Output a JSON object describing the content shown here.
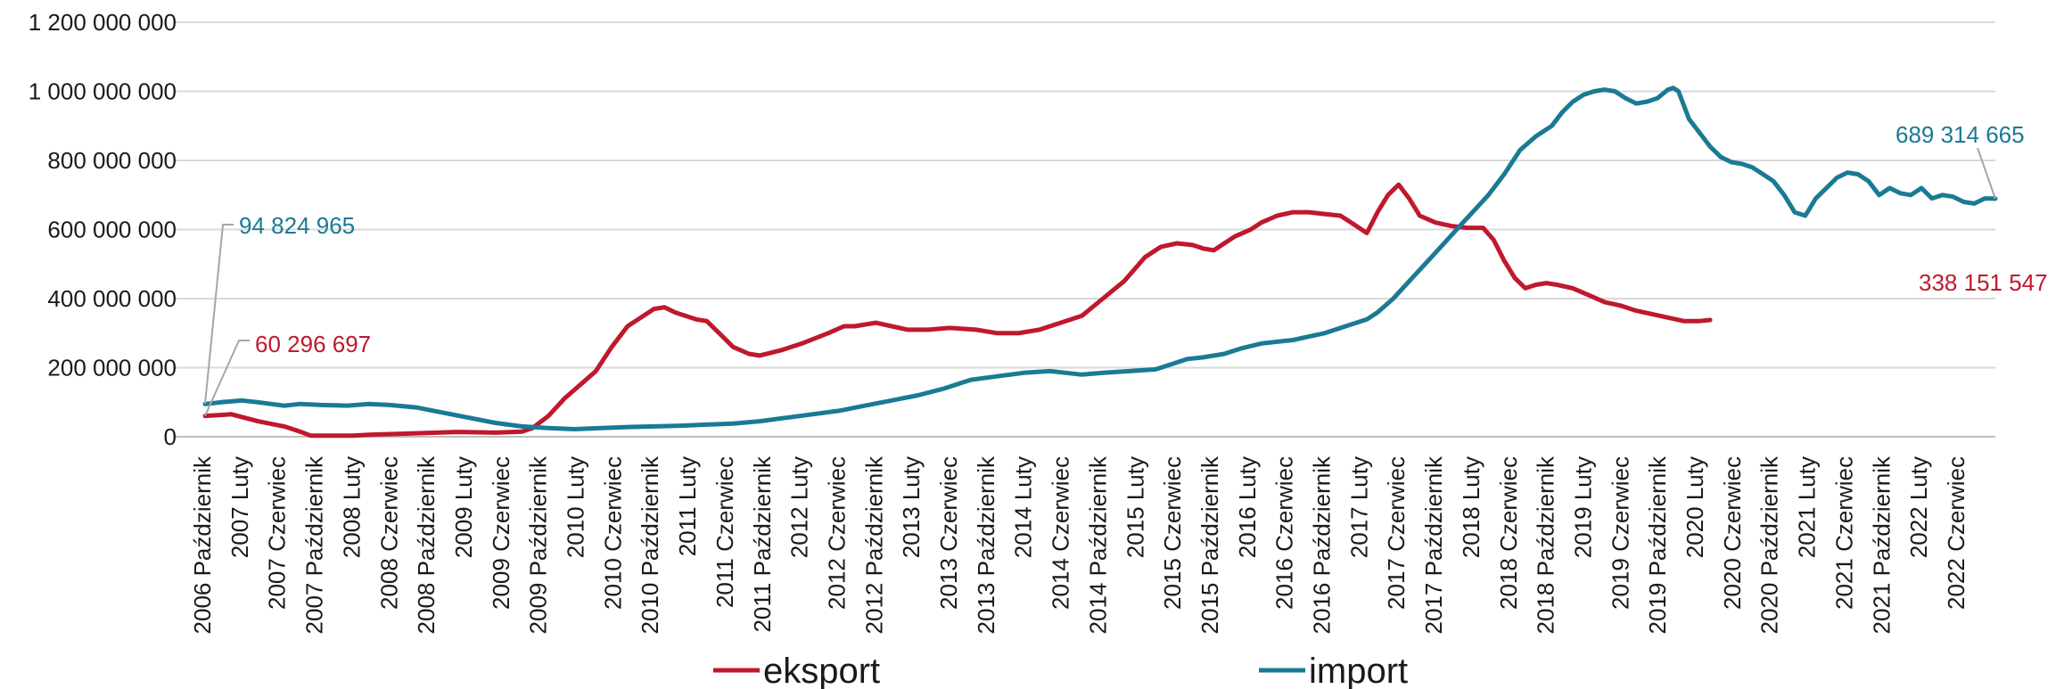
{
  "chart_data": {
    "type": "line",
    "title": "",
    "xlabel": "",
    "ylabel": "",
    "ylim": [
      0,
      1200000000
    ],
    "yticks": [
      {
        "value": 0,
        "label": "0"
      },
      {
        "value": 200000000,
        "label": "200 000 000"
      },
      {
        "value": 400000000,
        "label": "400 000 000"
      },
      {
        "value": 600000000,
        "label": "600 000 000"
      },
      {
        "value": 800000000,
        "label": "800 000 000"
      },
      {
        "value": 1000000000,
        "label": "1 000 000 000"
      },
      {
        "value": 1200000000,
        "label": "1 200 000 000"
      }
    ],
    "grid": true,
    "legend_position": "bottom",
    "x_start": {
      "year": 2006,
      "month": 10
    },
    "x_count": 194,
    "x_tick_labels": [
      "2006 Październik",
      "2007 Luty",
      "2007 Czerwiec",
      "2007 Październik",
      "2008 Luty",
      "2008 Czerwiec",
      "2008 Październik",
      "2009 Luty",
      "2009 Czerwiec",
      "2009 Październik",
      "2010 Luty",
      "2010 Czerwiec",
      "2010 Październik",
      "2011 Luty",
      "2011 Czerwiec",
      "2011 Październik",
      "2012 Luty",
      "2012 Czerwiec",
      "2012 Październik",
      "2013 Luty",
      "2013 Czerwiec",
      "2013 Październik",
      "2014 Luty",
      "2014 Czerwiec",
      "2014 Październik",
      "2015 Luty",
      "2015 Czerwiec",
      "2015 Październik",
      "2016 Luty",
      "2016 Czerwiec",
      "2016 Październik",
      "2017 Luty",
      "2017 Czerwiec",
      "2017 Październik",
      "2018 Luty",
      "2018 Czerwiec",
      "2018 Październik",
      "2019 Luty",
      "2019 Czerwiec",
      "2019 Październik",
      "2020 Luty",
      "2020 Czerwiec",
      "2020 Październik",
      "2021 Luty",
      "2021 Czerwiec",
      "2021 Październik",
      "2022 Luty",
      "2022 Czerwiec"
    ],
    "series": [
      {
        "name": "eksport",
        "color": "#c0182c",
        "anchors": [
          [
            0,
            60296697
          ],
          [
            5,
            65000000
          ],
          [
            10,
            45000000
          ],
          [
            15,
            30000000
          ],
          [
            18,
            15000000
          ],
          [
            20,
            3000000
          ],
          [
            28,
            3000000
          ],
          [
            31,
            6000000
          ],
          [
            38,
            9000000
          ],
          [
            48,
            14000000
          ],
          [
            55,
            12000000
          ],
          [
            60,
            15000000
          ],
          [
            62,
            25000000
          ],
          [
            65,
            60000000
          ],
          [
            68,
            110000000
          ],
          [
            71,
            150000000
          ],
          [
            74,
            190000000
          ],
          [
            77,
            260000000
          ],
          [
            80,
            320000000
          ],
          [
            82,
            340000000
          ],
          [
            85,
            370000000
          ],
          [
            87,
            375000000
          ],
          [
            89,
            360000000
          ],
          [
            93,
            340000000
          ],
          [
            95,
            335000000
          ],
          [
            98,
            290000000
          ],
          [
            100,
            260000000
          ],
          [
            103,
            240000000
          ],
          [
            105,
            235000000
          ],
          [
            109,
            250000000
          ],
          [
            113,
            270000000
          ],
          [
            118,
            300000000
          ],
          [
            121,
            320000000
          ],
          [
            123,
            320000000
          ],
          [
            127,
            330000000
          ],
          [
            130,
            320000000
          ],
          [
            133,
            310000000
          ],
          [
            137,
            310000000
          ],
          [
            141,
            315000000
          ],
          [
            146,
            310000000
          ],
          [
            150,
            300000000
          ],
          [
            154,
            300000000
          ],
          [
            158,
            310000000
          ],
          [
            162,
            330000000
          ],
          [
            166,
            350000000
          ],
          [
            170,
            400000000
          ],
          [
            174,
            450000000
          ],
          [
            178,
            520000000
          ],
          [
            181,
            550000000
          ],
          [
            184,
            560000000
          ],
          [
            187,
            555000000
          ],
          [
            189,
            545000000
          ],
          [
            191,
            540000000
          ],
          [
            193,
            560000000
          ],
          [
            195,
            580000000
          ],
          [
            198,
            600000000
          ],
          [
            200,
            620000000
          ],
          [
            203,
            640000000
          ],
          [
            206,
            650000000
          ],
          [
            209,
            650000000
          ],
          [
            212,
            645000000
          ],
          [
            215,
            640000000
          ],
          [
            217,
            620000000
          ],
          [
            219,
            600000000
          ],
          [
            220,
            590000000
          ],
          [
            222,
            650000000
          ],
          [
            224,
            700000000
          ],
          [
            226,
            730000000
          ],
          [
            228,
            690000000
          ],
          [
            230,
            640000000
          ],
          [
            233,
            620000000
          ],
          [
            236,
            610000000
          ],
          [
            239,
            605000000
          ],
          [
            242,
            605000000
          ],
          [
            244,
            570000000
          ],
          [
            246,
            510000000
          ],
          [
            248,
            460000000
          ],
          [
            250,
            430000000
          ],
          [
            252,
            440000000
          ],
          [
            254,
            445000000
          ],
          [
            256,
            440000000
          ],
          [
            259,
            430000000
          ],
          [
            262,
            410000000
          ],
          [
            265,
            390000000
          ],
          [
            268,
            380000000
          ],
          [
            271,
            365000000
          ],
          [
            274,
            355000000
          ],
          [
            277,
            345000000
          ],
          [
            280,
            335000000
          ],
          [
            283,
            335000000
          ],
          [
            285,
            338151547
          ]
        ],
        "end_label": "338 151 547",
        "start_label": "60 296 697",
        "start_value": 60296697,
        "end_value": 338151547
      },
      {
        "name": "import",
        "color": "#1a7a94",
        "anchors": [
          [
            0,
            94824965
          ],
          [
            3,
            100000000
          ],
          [
            7,
            105000000
          ],
          [
            10,
            100000000
          ],
          [
            15,
            90000000
          ],
          [
            18,
            95000000
          ],
          [
            22,
            92000000
          ],
          [
            27,
            90000000
          ],
          [
            31,
            95000000
          ],
          [
            35,
            92000000
          ],
          [
            40,
            85000000
          ],
          [
            45,
            70000000
          ],
          [
            50,
            55000000
          ],
          [
            55,
            40000000
          ],
          [
            60,
            30000000
          ],
          [
            65,
            25000000
          ],
          [
            70,
            22000000
          ],
          [
            75,
            25000000
          ],
          [
            80,
            28000000
          ],
          [
            85,
            30000000
          ],
          [
            90,
            32000000
          ],
          [
            95,
            35000000
          ],
          [
            100,
            38000000
          ],
          [
            105,
            45000000
          ],
          [
            110,
            55000000
          ],
          [
            115,
            65000000
          ],
          [
            120,
            75000000
          ],
          [
            125,
            90000000
          ],
          [
            130,
            105000000
          ],
          [
            135,
            120000000
          ],
          [
            140,
            140000000
          ],
          [
            145,
            165000000
          ],
          [
            150,
            175000000
          ],
          [
            155,
            185000000
          ],
          [
            160,
            190000000
          ],
          [
            163,
            185000000
          ],
          [
            166,
            180000000
          ],
          [
            170,
            185000000
          ],
          [
            175,
            190000000
          ],
          [
            180,
            195000000
          ],
          [
            183,
            210000000
          ],
          [
            186,
            225000000
          ],
          [
            189,
            230000000
          ],
          [
            193,
            240000000
          ],
          [
            196,
            255000000
          ],
          [
            200,
            270000000
          ],
          [
            203,
            275000000
          ],
          [
            206,
            280000000
          ],
          [
            209,
            290000000
          ],
          [
            212,
            300000000
          ],
          [
            214,
            310000000
          ],
          [
            216,
            320000000
          ],
          [
            218,
            330000000
          ],
          [
            220,
            340000000
          ],
          [
            222,
            360000000
          ],
          [
            225,
            400000000
          ],
          [
            228,
            450000000
          ],
          [
            231,
            500000000
          ],
          [
            234,
            550000000
          ],
          [
            237,
            600000000
          ],
          [
            240,
            650000000
          ],
          [
            243,
            700000000
          ],
          [
            246,
            760000000
          ],
          [
            249,
            830000000
          ],
          [
            252,
            870000000
          ],
          [
            255,
            900000000
          ],
          [
            257,
            940000000
          ],
          [
            259,
            970000000
          ],
          [
            261,
            990000000
          ],
          [
            263,
            1000000000
          ],
          [
            265,
            1005000000
          ],
          [
            267,
            1000000000
          ],
          [
            269,
            980000000
          ],
          [
            271,
            965000000
          ],
          [
            273,
            970000000
          ],
          [
            275,
            980000000
          ],
          [
            277,
            1005000000
          ],
          [
            278,
            1010000000
          ],
          [
            279,
            1000000000
          ],
          [
            281,
            920000000
          ],
          [
            283,
            880000000
          ],
          [
            285,
            840000000
          ],
          [
            287,
            810000000
          ],
          [
            289,
            795000000
          ],
          [
            291,
            790000000
          ],
          [
            293,
            780000000
          ],
          [
            295,
            760000000
          ],
          [
            297,
            740000000
          ],
          [
            299,
            700000000
          ],
          [
            301,
            650000000
          ],
          [
            303,
            640000000
          ],
          [
            305,
            690000000
          ],
          [
            307,
            720000000
          ],
          [
            309,
            750000000
          ],
          [
            311,
            765000000
          ],
          [
            313,
            760000000
          ],
          [
            315,
            740000000
          ],
          [
            317,
            700000000
          ],
          [
            319,
            720000000
          ],
          [
            321,
            705000000
          ],
          [
            323,
            700000000
          ],
          [
            325,
            720000000
          ],
          [
            327,
            690000000
          ],
          [
            329,
            700000000
          ],
          [
            331,
            695000000
          ],
          [
            333,
            680000000
          ],
          [
            335,
            675000000
          ],
          [
            337,
            690000000
          ],
          [
            339,
            689314665
          ]
        ],
        "end_label": "689 314 665",
        "start_label": "94 824 965",
        "start_value": 94824965,
        "end_value": 689314665
      }
    ]
  }
}
